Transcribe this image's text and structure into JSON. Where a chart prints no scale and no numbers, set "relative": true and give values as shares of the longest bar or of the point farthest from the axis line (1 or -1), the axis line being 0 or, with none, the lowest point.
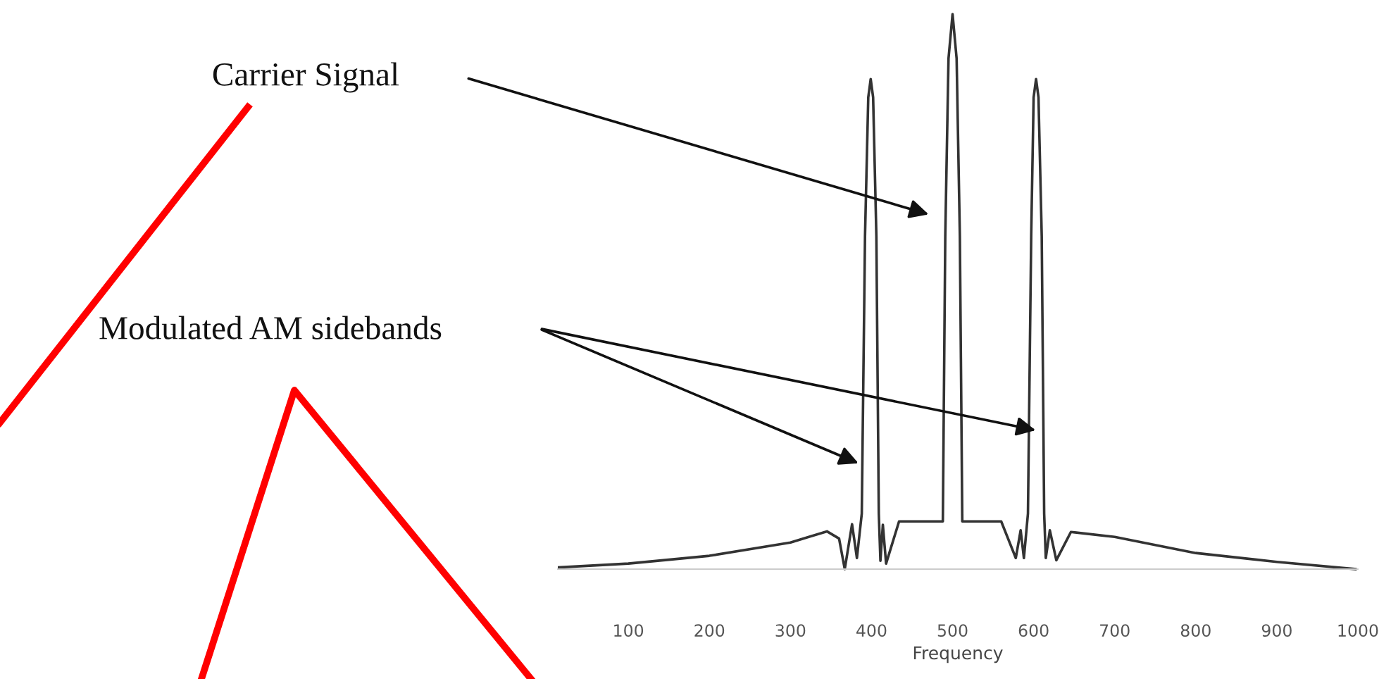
{
  "chart_data": {
    "type": "line",
    "relative": true,
    "xlabel": "Frequency",
    "xlim": [
      13,
      1000
    ],
    "xticks": [
      100,
      200,
      300,
      400,
      500,
      600,
      700,
      800,
      900,
      1000
    ],
    "grid": false,
    "marker": "none",
    "line_style": "solid",
    "x": [
      13,
      100,
      200,
      300,
      345,
      360,
      367,
      376,
      382,
      388,
      392,
      396,
      399,
      402,
      406,
      409,
      411,
      414,
      418,
      434,
      488,
      491,
      495,
      500,
      505,
      509,
      512,
      560,
      578,
      584,
      588,
      593,
      597,
      600,
      603,
      606,
      610,
      613,
      615,
      620,
      628,
      646,
      700,
      800,
      900,
      997
    ],
    "series": [
      {
        "color": "#333333",
        "values": [
          0.003,
          0.01,
          0.024,
          0.048,
          0.068,
          0.055,
          0.0,
          0.081,
          0.02,
          0.1,
          0.6,
          0.85,
          0.883,
          0.85,
          0.6,
          0.1,
          0.015,
          0.08,
          0.01,
          0.086,
          0.086,
          0.6,
          0.92,
          1.0,
          0.92,
          0.6,
          0.086,
          0.086,
          0.02,
          0.07,
          0.02,
          0.1,
          0.6,
          0.85,
          0.883,
          0.85,
          0.6,
          0.1,
          0.02,
          0.07,
          0.016,
          0.067,
          0.058,
          0.029,
          0.013,
          0.0
        ]
      }
    ],
    "annotations": [
      "Carrier Signal",
      "Modulated AM sidebands"
    ]
  }
}
